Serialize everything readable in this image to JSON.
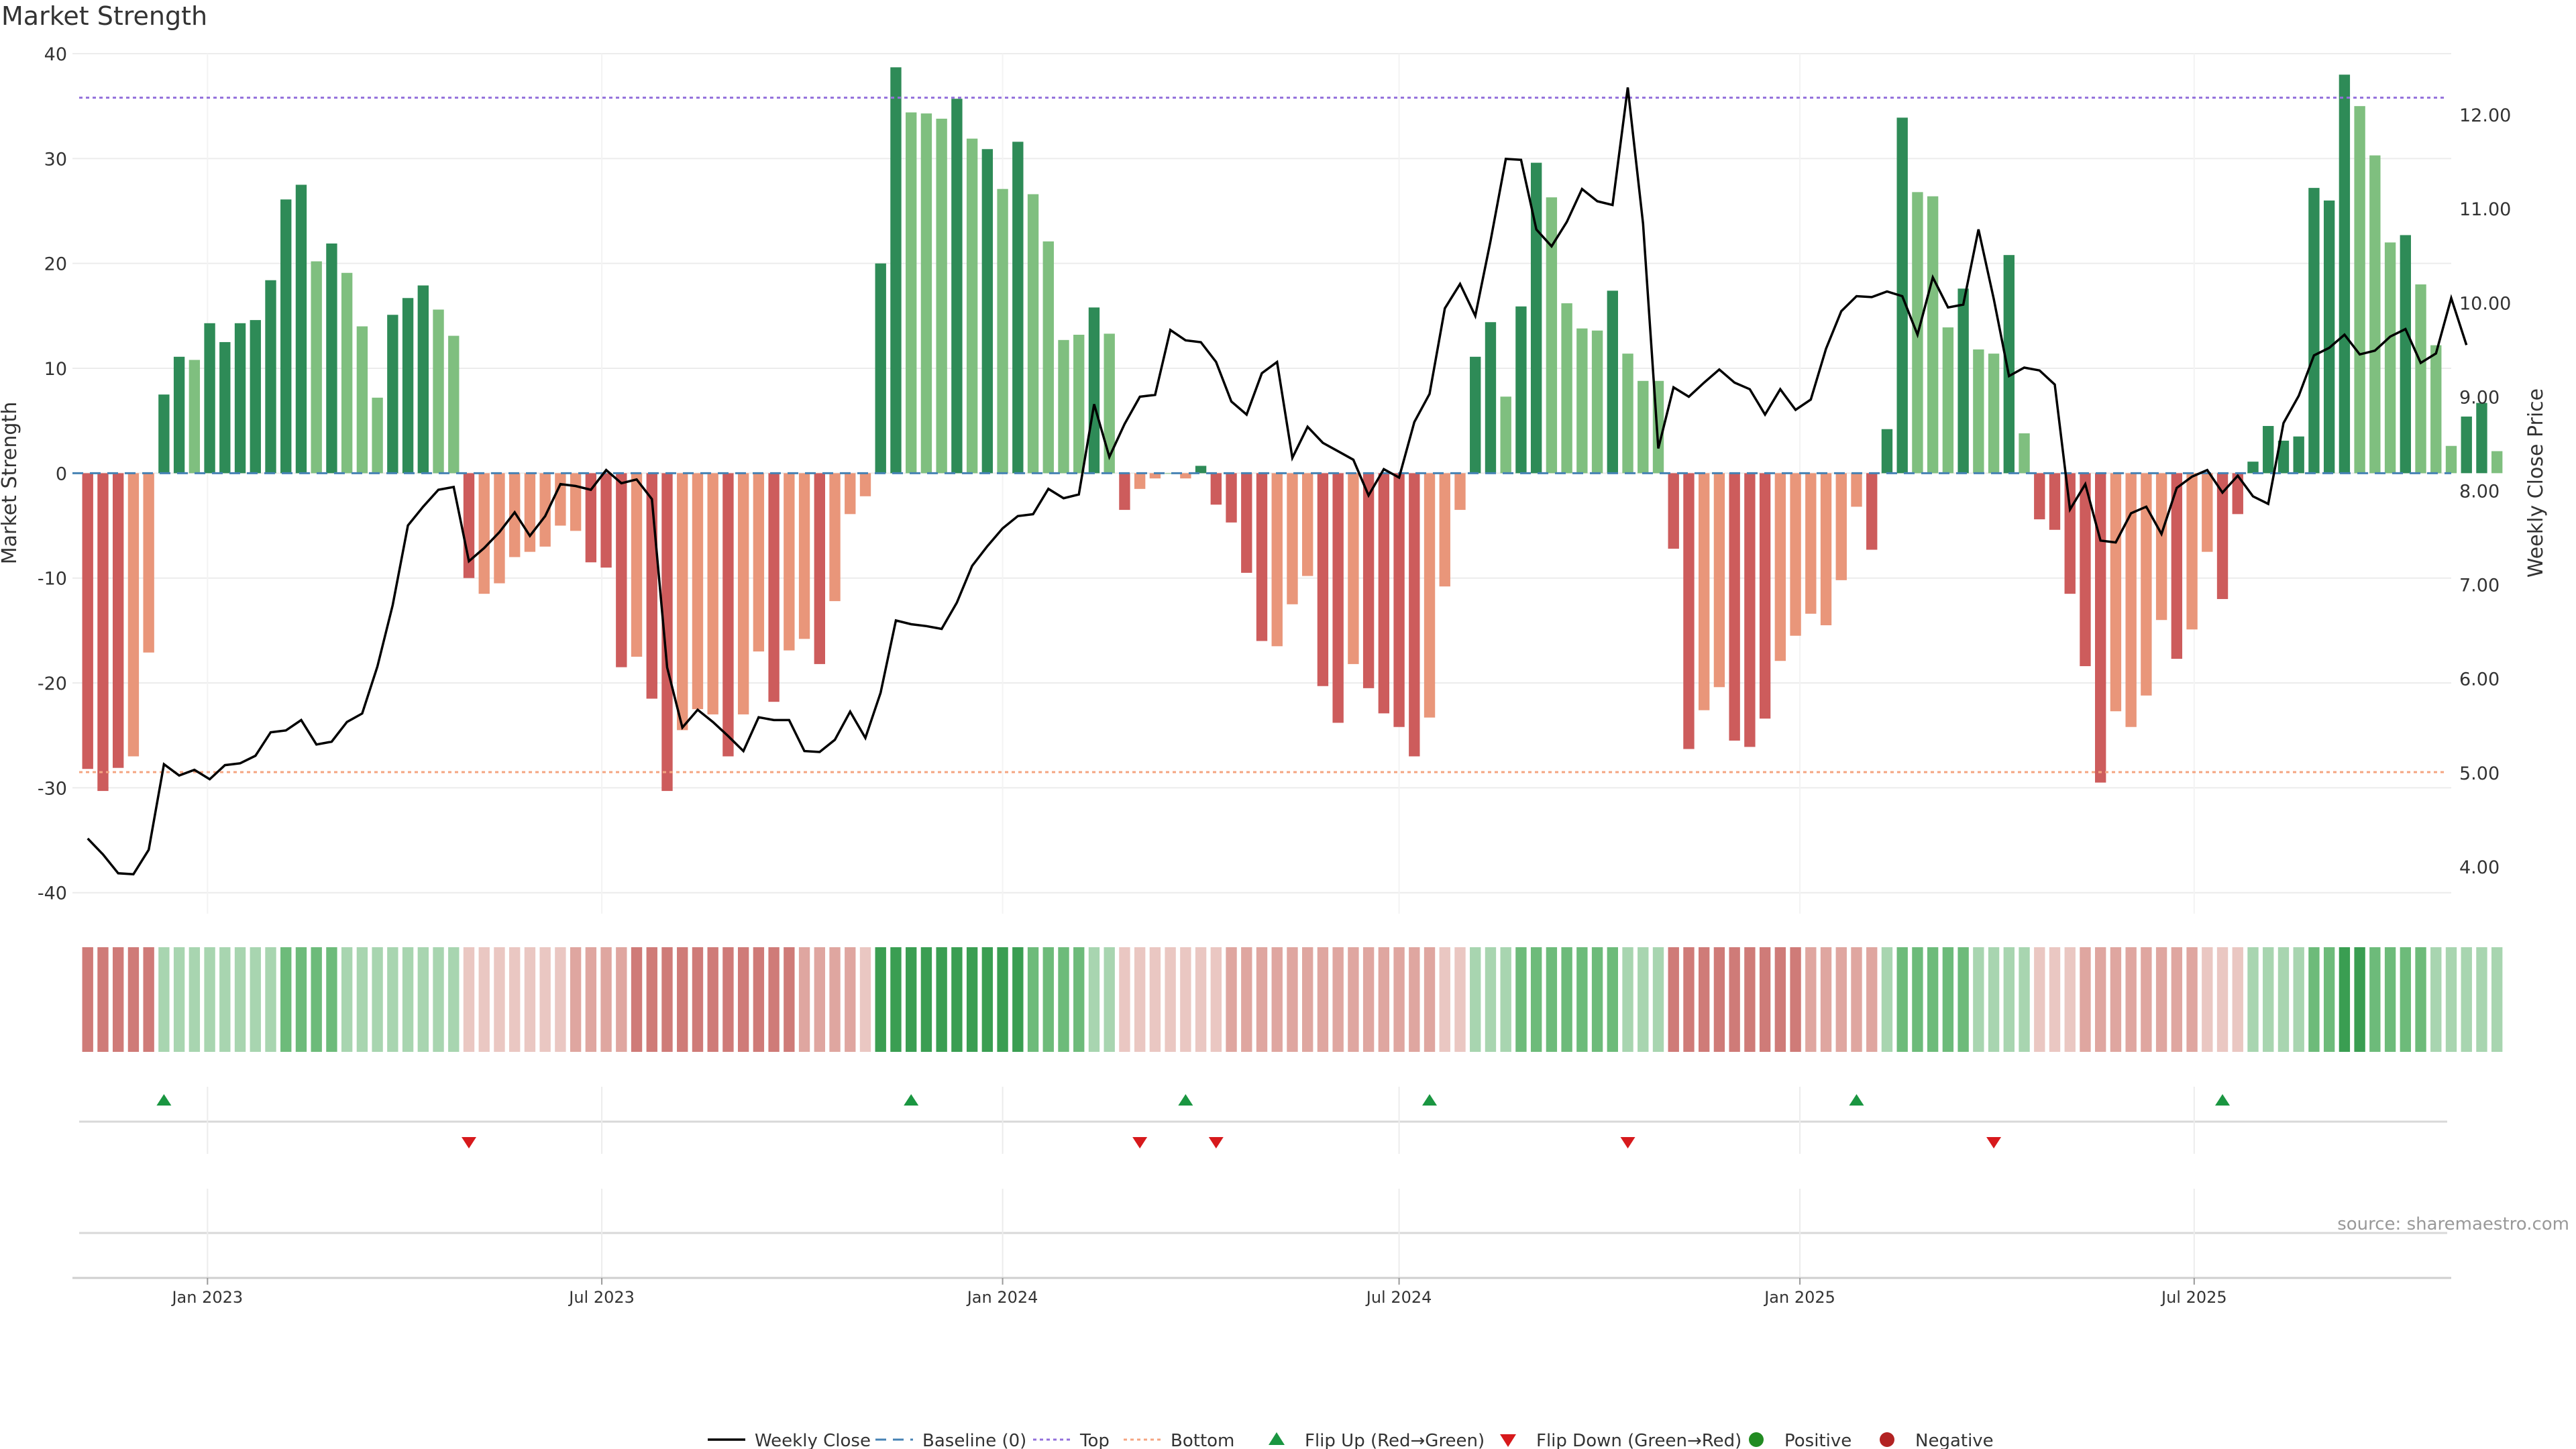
{
  "title": "Market Strength",
  "source_text": "source: sharemaestro.com",
  "colors": {
    "strong_green": "#2e8b57",
    "light_green": "#7fbf7f",
    "strong_red": "#cd5c5c",
    "light_red": "#e9967a",
    "close_line": "#000000",
    "baseline": "#4682b4",
    "top": "#9370db",
    "bottom": "#f4a582",
    "flip_up": "#1a9641",
    "flip_down": "#d7191c",
    "positive": "#228b22",
    "negative": "#b22222"
  },
  "legend": [
    {
      "key": "close",
      "label": "Weekly Close"
    },
    {
      "key": "baseline",
      "label": "Baseline (0)"
    },
    {
      "key": "top",
      "label": "Top"
    },
    {
      "key": "bottom",
      "label": "Bottom"
    },
    {
      "key": "flip_up",
      "label": "Flip Up (Red→Green)"
    },
    {
      "key": "flip_down",
      "label": "Flip Down (Green→Red)"
    },
    {
      "key": "positive",
      "label": "Positive"
    },
    {
      "key": "negative",
      "label": "Negative"
    }
  ],
  "chart_data": {
    "type": "bar",
    "ylabel": "Market Strength",
    "y2label": "Weekly Close Price",
    "ylim": [
      -42,
      40
    ],
    "y2lim": [
      3.5,
      12.65
    ],
    "yticks": [
      -40,
      -30,
      -20,
      -10,
      0,
      10,
      20,
      30,
      40
    ],
    "y2ticks": [
      "4.00",
      "5.00",
      "6.00",
      "7.00",
      "8.00",
      "9.00",
      "10.00",
      "11.00",
      "12.00"
    ],
    "x_range": [
      "2022-10-31",
      "2025-10-27"
    ],
    "xticks": [
      {
        "date": "2023-01-01",
        "label": "Jan 2023"
      },
      {
        "date": "2023-07-01",
        "label": "Jul 2023"
      },
      {
        "date": "2024-01-01",
        "label": "Jan 2024"
      },
      {
        "date": "2024-07-01",
        "label": "Jul 2024"
      },
      {
        "date": "2025-01-01",
        "label": "Jan 2025"
      },
      {
        "date": "2025-07-01",
        "label": "Jul 2025"
      }
    ],
    "top_line": 35.8,
    "bottom_line": -28.5,
    "baseline": 0,
    "start_date": "2022-11-07",
    "bars": [
      -28.2,
      -30.3,
      -28.1,
      -27.0,
      -17.1,
      7.5,
      11.1,
      10.8,
      14.3,
      12.5,
      14.3,
      14.6,
      18.4,
      26.1,
      27.5,
      20.2,
      21.9,
      19.1,
      14.0,
      7.2,
      15.1,
      16.7,
      17.9,
      15.6,
      13.1,
      -10.0,
      -11.5,
      -10.5,
      -8.0,
      -7.5,
      -7.0,
      -5.0,
      -5.5,
      -8.5,
      -9.0,
      -18.5,
      -17.5,
      -21.5,
      -30.3,
      -24.5,
      -22.5,
      -23.0,
      -27.0,
      -23.0,
      -17.0,
      -21.8,
      -16.9,
      -15.8,
      -18.2,
      -12.2,
      -3.9,
      -2.2,
      20.0,
      38.7,
      34.4,
      34.3,
      33.8,
      35.7,
      31.9,
      30.9,
      27.1,
      31.6,
      26.6,
      22.1,
      12.7,
      13.2,
      15.8,
      13.3,
      -3.5,
      -1.5,
      -0.5,
      0.0,
      -0.5,
      0.7,
      -3.0,
      -4.7,
      -9.5,
      -16.0,
      -16.5,
      -12.5,
      -9.8,
      -20.3,
      -23.8,
      -18.2,
      -20.5,
      -22.9,
      -24.2,
      -27.0,
      -23.3,
      -10.8,
      -3.5,
      11.1,
      14.4,
      7.3,
      15.9,
      29.6,
      26.3,
      16.2,
      13.8,
      13.6,
      17.4,
      11.4,
      8.8,
      8.8,
      -7.2,
      -26.3,
      -22.6,
      -20.4,
      -25.5,
      -26.1,
      -23.4,
      -17.9,
      -15.5,
      -13.4,
      -14.5,
      -10.2,
      -3.2,
      -7.3,
      4.2,
      33.9,
      26.8,
      26.4,
      13.9,
      17.6,
      11.8,
      11.4,
      20.8,
      3.8,
      -4.4,
      -5.4,
      -11.5,
      -18.4,
      -29.5,
      -22.7,
      -24.2,
      -21.2,
      -14.0,
      -17.7,
      -14.9,
      -7.5,
      -12.0,
      -3.9,
      1.1,
      4.5,
      3.1,
      3.5,
      27.2,
      26.0,
      38.0,
      35.0,
      30.3,
      22.0,
      22.7,
      18.0,
      12.2,
      2.6,
      5.4,
      6.7,
      2.1
    ],
    "bar_shade": [
      1,
      1,
      1,
      0,
      0,
      1,
      1,
      0,
      1,
      1,
      1,
      1,
      1,
      1,
      1,
      0,
      1,
      0,
      0,
      0,
      1,
      1,
      1,
      0,
      0,
      1,
      0,
      0,
      0,
      0,
      0,
      0,
      0,
      1,
      1,
      1,
      0,
      1,
      1,
      0,
      0,
      0,
      1,
      0,
      0,
      1,
      0,
      0,
      1,
      0,
      0,
      0,
      1,
      1,
      0,
      0,
      0,
      1,
      0,
      1,
      0,
      1,
      0,
      0,
      0,
      0,
      1,
      0,
      1,
      0,
      0,
      0,
      0,
      1,
      1,
      1,
      1,
      1,
      0,
      0,
      0,
      1,
      1,
      0,
      1,
      1,
      1,
      1,
      0,
      0,
      0,
      1,
      1,
      0,
      1,
      1,
      0,
      0,
      0,
      0,
      1,
      0,
      0,
      0,
      1,
      1,
      0,
      0,
      1,
      1,
      1,
      0,
      0,
      0,
      0,
      0,
      0,
      1,
      1,
      1,
      0,
      0,
      0,
      1,
      0,
      0,
      1,
      0,
      1,
      1,
      1,
      1,
      1,
      0,
      0,
      0,
      0,
      1,
      0,
      0,
      1,
      1,
      1,
      1,
      1,
      1,
      1,
      1,
      1,
      0,
      0,
      0,
      1,
      0,
      0,
      0,
      1,
      1,
      0
    ],
    "closes": [
      4.3,
      4.13,
      3.93,
      3.92,
      4.18,
      5.09,
      4.97,
      5.03,
      4.93,
      5.08,
      5.1,
      5.18,
      5.43,
      5.45,
      5.56,
      5.3,
      5.33,
      5.54,
      5.63,
      6.13,
      6.78,
      7.63,
      7.83,
      8.01,
      8.04,
      7.25,
      7.39,
      7.56,
      7.77,
      7.52,
      7.73,
      8.07,
      8.05,
      8.01,
      8.22,
      8.08,
      8.12,
      7.91,
      6.12,
      5.48,
      5.67,
      5.54,
      5.39,
      5.23,
      5.59,
      5.56,
      5.56,
      5.23,
      5.22,
      5.35,
      5.65,
      5.37,
      5.85,
      6.62,
      6.58,
      6.56,
      6.53,
      6.81,
      7.2,
      7.41,
      7.6,
      7.73,
      7.75,
      8.02,
      7.92,
      7.96,
      8.92,
      8.36,
      8.71,
      9.0,
      9.02,
      9.71,
      9.6,
      9.58,
      9.37,
      8.95,
      8.81,
      9.25,
      9.37,
      8.35,
      8.68,
      8.51,
      8.42,
      8.33,
      7.95,
      8.23,
      8.14,
      8.73,
      9.03,
      9.94,
      10.2,
      9.86,
      10.66,
      11.53,
      11.52,
      10.78,
      10.6,
      10.86,
      11.21,
      11.08,
      11.04,
      12.29,
      10.84,
      8.45,
      9.1,
      9.0,
      9.15,
      9.29,
      9.15,
      9.08,
      8.81,
      9.08,
      8.86,
      8.97,
      9.51,
      9.91,
      10.07,
      10.06,
      10.12,
      10.07,
      9.66,
      10.27,
      9.95,
      9.98,
      10.78,
      10.04,
      9.22,
      9.31,
      9.28,
      9.13,
      7.8,
      8.07,
      7.47,
      7.45,
      7.76,
      7.83,
      7.54,
      8.03,
      8.15,
      8.22,
      7.98,
      8.16,
      7.94,
      7.86,
      8.72,
      9.01,
      9.44,
      9.52,
      9.66,
      9.45,
      9.49,
      9.64,
      9.72,
      9.36,
      9.46,
      10.05,
      9.55
    ],
    "heat_values": [
      -3,
      -3,
      -3,
      -3,
      -3,
      1,
      1,
      1,
      1,
      1,
      1,
      1,
      1,
      2,
      2,
      2,
      2,
      1,
      1,
      1,
      1,
      1,
      1,
      1,
      1,
      -1,
      -1,
      -1,
      -1,
      -1,
      -1,
      -1,
      -2,
      -2,
      -2,
      -2,
      -3,
      -3,
      -3,
      -3,
      -3,
      -3,
      -3,
      -3,
      -3,
      -3,
      -3,
      -2,
      -2,
      -2,
      -2,
      -1,
      3,
      3,
      3,
      3,
      3,
      3,
      3,
      3,
      3,
      3,
      2,
      2,
      2,
      2,
      1,
      1,
      -1,
      -1,
      -1,
      -1,
      -1,
      -1,
      -1,
      -2,
      -2,
      -2,
      -2,
      -2,
      -2,
      -2,
      -2,
      -2,
      -2,
      -2,
      -2,
      -2,
      -2,
      -1,
      -1,
      1,
      1,
      1,
      2,
      2,
      2,
      2,
      2,
      2,
      2,
      1,
      1,
      1,
      -3,
      -3,
      -3,
      -3,
      -3,
      -3,
      -3,
      -3,
      -3,
      -2,
      -2,
      -2,
      -2,
      -2,
      1,
      2,
      2,
      2,
      2,
      2,
      1,
      1,
      1,
      1,
      -1,
      -1,
      -1,
      -2,
      -2,
      -2,
      -2,
      -2,
      -2,
      -2,
      -2,
      -1,
      -1,
      -1,
      1,
      1,
      1,
      1,
      2,
      2,
      3,
      3,
      2,
      2,
      2,
      2,
      1,
      1,
      1,
      1,
      1
    ],
    "flips": {
      "up": [
        "2022-12-12",
        "2023-11-20",
        "2024-03-25",
        "2024-07-15",
        "2025-01-27",
        "2025-07-14"
      ],
      "down": [
        "2023-05-01",
        "2024-03-04",
        "2024-04-08",
        "2024-10-14",
        "2025-03-31"
      ]
    }
  }
}
